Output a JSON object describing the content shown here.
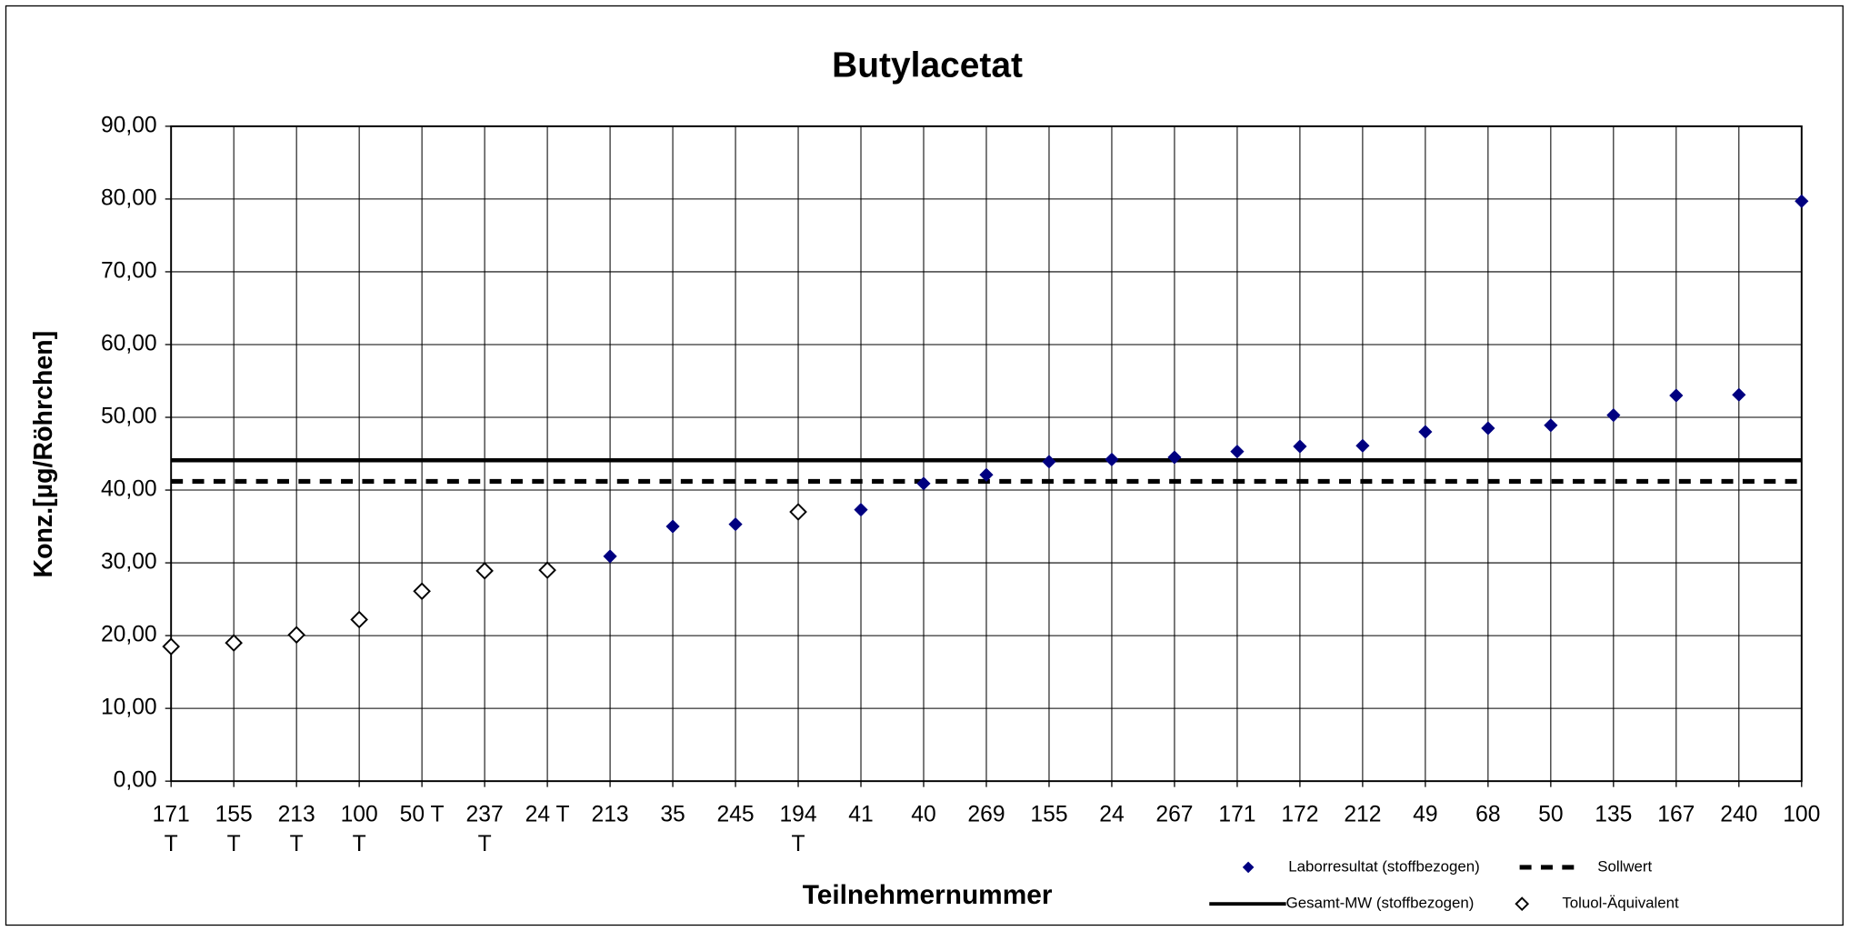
{
  "chart_data": {
    "type": "scatter",
    "title": "Butylacetat",
    "x_label": "Teilnehmernummer",
    "y_label": "Konz.[µg/Röhrchen]",
    "categories": [
      [
        "171",
        "T"
      ],
      [
        "155",
        "T"
      ],
      [
        "213",
        "T"
      ],
      [
        "100",
        "T"
      ],
      [
        "50 T"
      ],
      [
        "237",
        "T"
      ],
      [
        "24 T"
      ],
      [
        "213"
      ],
      [
        "35"
      ],
      [
        "245"
      ],
      [
        "194",
        "T"
      ],
      [
        "41"
      ],
      [
        "40"
      ],
      [
        "269"
      ],
      [
        "155"
      ],
      [
        "24"
      ],
      [
        "267"
      ],
      [
        "171"
      ],
      [
        "172"
      ],
      [
        "212"
      ],
      [
        "49"
      ],
      [
        "68"
      ],
      [
        "50"
      ],
      [
        "135"
      ],
      [
        "167"
      ],
      [
        "240"
      ],
      [
        "100"
      ]
    ],
    "series": [
      {
        "name": "Laborresultat (stoffbezogen)",
        "color": "#000080",
        "filled": true,
        "values": [
          null,
          null,
          null,
          null,
          null,
          null,
          null,
          30.9,
          35.0,
          35.3,
          null,
          37.3,
          40.9,
          42.1,
          43.9,
          44.2,
          44.5,
          45.3,
          46.0,
          46.1,
          48.0,
          48.5,
          48.9,
          50.3,
          53.0,
          53.1,
          79.7
        ]
      },
      {
        "name": "Toluol-Äquivalent",
        "color": "#000000",
        "filled": false,
        "values": [
          18.5,
          19.0,
          20.1,
          22.2,
          26.1,
          28.9,
          29.0,
          null,
          null,
          null,
          37.0,
          null,
          null,
          null,
          null,
          null,
          null,
          null,
          null,
          null,
          null,
          null,
          null,
          null,
          null,
          null,
          null
        ]
      }
    ],
    "reference_lines": [
      {
        "name": "Gesamt-MW (stoffbezogen)",
        "value": 44.1,
        "style": "solid",
        "color": "#000000"
      },
      {
        "name": "Sollwert",
        "value": 41.2,
        "style": "dashed",
        "color": "#000000"
      }
    ],
    "ylim": [
      0,
      90
    ],
    "yticks": [
      {
        "value": 0,
        "label": "0,00"
      },
      {
        "value": 10,
        "label": "10,00"
      },
      {
        "value": 20,
        "label": "20,00"
      },
      {
        "value": 30,
        "label": "30,00"
      },
      {
        "value": 40,
        "label": "40,00"
      },
      {
        "value": 50,
        "label": "50,00"
      },
      {
        "value": 60,
        "label": "60,00"
      },
      {
        "value": 70,
        "label": "70,00"
      },
      {
        "value": 80,
        "label": "80,00"
      },
      {
        "value": 90,
        "label": "90,00"
      }
    ],
    "grid": true
  }
}
